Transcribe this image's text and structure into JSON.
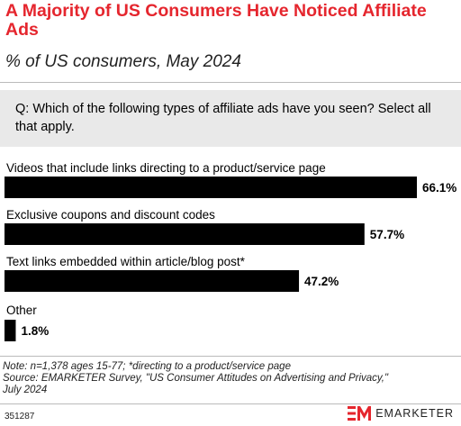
{
  "header": {
    "title": "A Majority of US Consumers Have Noticed Affiliate Ads",
    "subtitle": "% of US consumers, May 2024"
  },
  "question": "Q: Which of the following types of affiliate ads have you seen? Select all that apply.",
  "chart_data": {
    "type": "bar",
    "orientation": "horizontal",
    "categories": [
      "Videos that include links directing to a product/service page",
      "Exclusive coupons and discount codes",
      "Text links embedded within article/blog post*",
      "Other"
    ],
    "values": [
      66.1,
      57.7,
      47.2,
      1.8
    ],
    "value_labels": [
      "66.1%",
      "57.7%",
      "47.2%",
      "1.8%"
    ],
    "unit": "%",
    "bar_color": "#000000",
    "grid": false,
    "legend": "none"
  },
  "notes": {
    "note": "Note: n=1,378 ages 15-77; *directing to a product/service page",
    "source_line1": "Source: EMARKETER Survey, \"US Consumer Attitudes on Advertising and Privacy,\"",
    "source_line2": "July 2024"
  },
  "footer": {
    "chart_id": "351287",
    "brand": "EMARKETER",
    "logo_icon": "em-logo-icon",
    "brand_color": "#e5262e"
  }
}
